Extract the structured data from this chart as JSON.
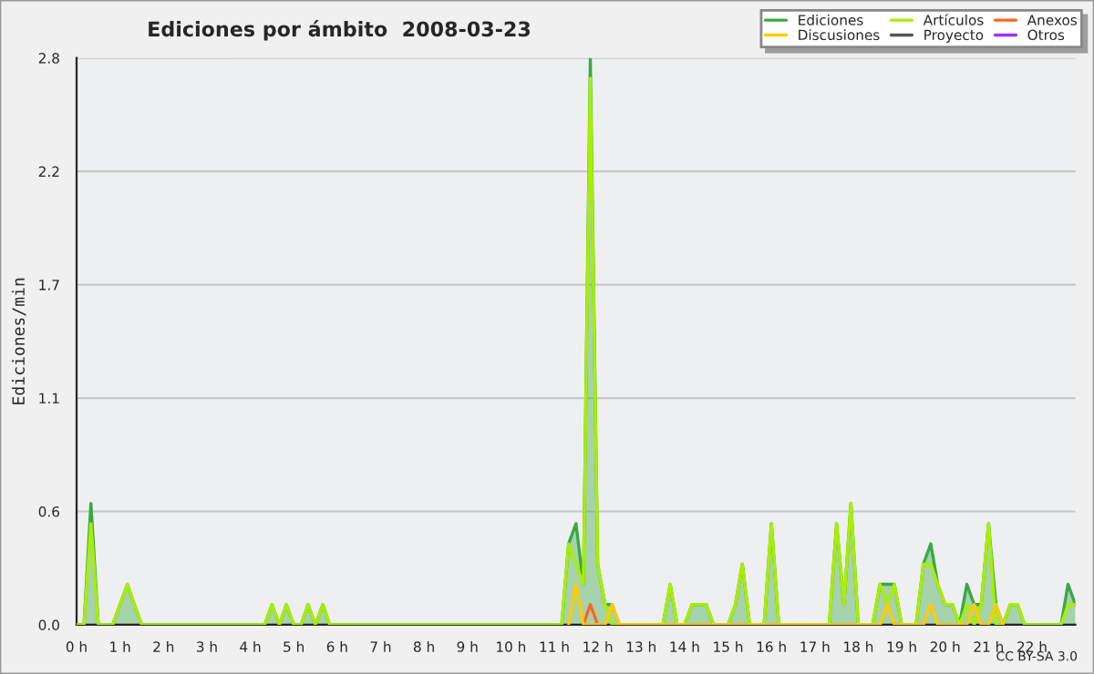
{
  "chart_data": {
    "type": "area",
    "title": "Ediciones por ámbito  2008-03-23",
    "ylabel": "Ediciones/min",
    "x": [
      0,
      0.17,
      0.33,
      0.5,
      0.83,
      1.0,
      1.17,
      1.33,
      1.5,
      4.33,
      4.5,
      4.67,
      4.83,
      5.0,
      5.17,
      5.33,
      5.5,
      5.67,
      5.83,
      11.17,
      11.33,
      11.5,
      11.67,
      11.83,
      12.0,
      12.17,
      12.33,
      12.5,
      13.5,
      13.67,
      13.83,
      14.0,
      14.17,
      14.33,
      14.5,
      14.67,
      15.0,
      15.17,
      15.33,
      15.5,
      15.83,
      16.0,
      16.17,
      17.33,
      17.5,
      17.67,
      17.83,
      18.0,
      18.33,
      18.5,
      18.67,
      18.83,
      19.0,
      19.33,
      19.5,
      19.67,
      19.83,
      20.0,
      20.17,
      20.33,
      20.5,
      20.67,
      20.83,
      21.0,
      21.17,
      21.33,
      21.5,
      21.67,
      21.83,
      22.67,
      22.83,
      23.0
    ],
    "series": [
      {
        "name": "Ediciones",
        "color": "#3aa845",
        "values": [
          0,
          0,
          0.6,
          0,
          0,
          0.1,
          0.2,
          0.1,
          0,
          0,
          0.1,
          0,
          0.1,
          0,
          0,
          0.1,
          0,
          0.1,
          0,
          0,
          0.4,
          0.5,
          0.2,
          2.8,
          0.3,
          0.1,
          0.1,
          0,
          0,
          0.2,
          0,
          0,
          0.1,
          0.1,
          0.1,
          0,
          0,
          0.1,
          0.3,
          0,
          0,
          0.5,
          0,
          0,
          0.5,
          0.1,
          0.6,
          0,
          0,
          0.2,
          0.2,
          0.2,
          0,
          0,
          0.3,
          0.4,
          0.2,
          0.1,
          0.1,
          0,
          0.2,
          0.1,
          0.1,
          0.5,
          0.1,
          0,
          0.1,
          0.1,
          0,
          0,
          0.2,
          0.1
        ]
      },
      {
        "name": "Artículos",
        "type": "line",
        "color": "#aaee00",
        "values": [
          0,
          0,
          0.5,
          0,
          0,
          0.1,
          0.2,
          0.1,
          0,
          0,
          0.1,
          0,
          0.1,
          0,
          0,
          0.1,
          0,
          0.1,
          0,
          0,
          0.4,
          0.3,
          0.2,
          2.7,
          0.3,
          0.1,
          0,
          0,
          0,
          0.2,
          0,
          0,
          0.1,
          0.1,
          0.1,
          0,
          0,
          0.1,
          0.3,
          0,
          0,
          0.5,
          0,
          0,
          0.5,
          0.1,
          0.6,
          0,
          0,
          0.2,
          0.1,
          0.2,
          0,
          0,
          0.3,
          0.3,
          0.2,
          0.1,
          0.1,
          0,
          0.1,
          0,
          0.1,
          0.5,
          0,
          0,
          0.1,
          0.1,
          0,
          0,
          0.1,
          0.1
        ]
      },
      {
        "name": "Anexos",
        "type": "line",
        "color": "#ff6622",
        "x": [
          11.67,
          11.83,
          12.0
        ],
        "values": [
          0,
          0.1,
          0
        ]
      },
      {
        "name": "Discusiones",
        "type": "line",
        "color": "#ffcc00",
        "x": [
          11.33,
          11.5,
          11.67,
          12.17,
          12.33,
          12.5,
          18.5,
          18.67,
          18.83,
          19.5,
          19.67,
          19.83,
          20.5,
          20.67,
          20.83,
          21.0,
          21.17,
          21.33
        ],
        "values": [
          0,
          0.2,
          0,
          0,
          0.1,
          0,
          0,
          0.1,
          0,
          0,
          0.1,
          0,
          0,
          0.1,
          0,
          0,
          0.1,
          0
        ]
      },
      {
        "name": "Proyecto",
        "type": "line",
        "color": "#555555",
        "values": [
          null,
          null,
          null,
          null,
          null,
          null,
          null,
          null,
          null,
          null,
          null,
          null,
          null,
          null,
          null,
          null,
          null,
          null,
          null,
          null,
          null,
          null,
          null,
          null,
          null,
          null,
          null,
          null,
          null,
          null,
          null,
          null,
          null,
          null,
          null,
          null,
          null,
          null,
          null,
          null,
          null,
          null,
          null,
          null,
          null,
          null,
          null,
          null,
          null,
          null,
          null,
          null,
          null,
          null,
          null,
          null,
          null,
          null,
          null,
          null,
          null,
          null,
          null,
          null,
          null,
          null,
          null,
          null,
          null,
          null,
          null,
          null
        ]
      },
      {
        "name": "Otros",
        "type": "line",
        "color": "#9933ff",
        "values": [
          null,
          null,
          null,
          null,
          null,
          null,
          null,
          null,
          null,
          null,
          null,
          null,
          null,
          null,
          null,
          null,
          null,
          null,
          null,
          null,
          null,
          null,
          null,
          null,
          null,
          null,
          null,
          null,
          null,
          null,
          null,
          null,
          null,
          null,
          null,
          null,
          null,
          null,
          null,
          null,
          null,
          null,
          null,
          null,
          null,
          null,
          null,
          null,
          null,
          null,
          null,
          null,
          null,
          null,
          null,
          null,
          null,
          null,
          null,
          null,
          null,
          null,
          null,
          null,
          null,
          null,
          null,
          null,
          null,
          null,
          null,
          null
        ]
      }
    ],
    "xlim": [
      0,
      23
    ],
    "xticks": [
      {
        "value": 0,
        "label": "0 h"
      },
      {
        "value": 1,
        "label": "1 h"
      },
      {
        "value": 2,
        "label": "2 h"
      },
      {
        "value": 3,
        "label": "3 h"
      },
      {
        "value": 4,
        "label": "4 h"
      },
      {
        "value": 5,
        "label": "5 h"
      },
      {
        "value": 6,
        "label": "6 h"
      },
      {
        "value": 7,
        "label": "7 h"
      },
      {
        "value": 8,
        "label": "8 h"
      },
      {
        "value": 9,
        "label": "9 h"
      },
      {
        "value": 10,
        "label": "10 h"
      },
      {
        "value": 11,
        "label": "11 h"
      },
      {
        "value": 12,
        "label": "12 h"
      },
      {
        "value": 13,
        "label": "13 h"
      },
      {
        "value": 14,
        "label": "14 h"
      },
      {
        "value": 15,
        "label": "15 h"
      },
      {
        "value": 16,
        "label": "16 h"
      },
      {
        "value": 17,
        "label": "17 h"
      },
      {
        "value": 18,
        "label": "18 h"
      },
      {
        "value": 19,
        "label": "19 h"
      },
      {
        "value": 20,
        "label": "20 h"
      },
      {
        "value": 21,
        "label": "21 h"
      },
      {
        "value": 22,
        "label": "22 h"
      }
    ],
    "ylim": [
      0,
      2.8
    ],
    "yticks": [
      {
        "value": 0,
        "label": "0.0"
      },
      {
        "value": 0.56,
        "label": "0.6"
      },
      {
        "value": 1.12,
        "label": "1.1"
      },
      {
        "value": 1.68,
        "label": "1.7"
      },
      {
        "value": 2.24,
        "label": "2.2"
      },
      {
        "value": 2.8,
        "label": "2.8"
      }
    ],
    "grid": "y",
    "legend": "top right",
    "annotations": [
      "CC BY-SA 3.0"
    ]
  }
}
